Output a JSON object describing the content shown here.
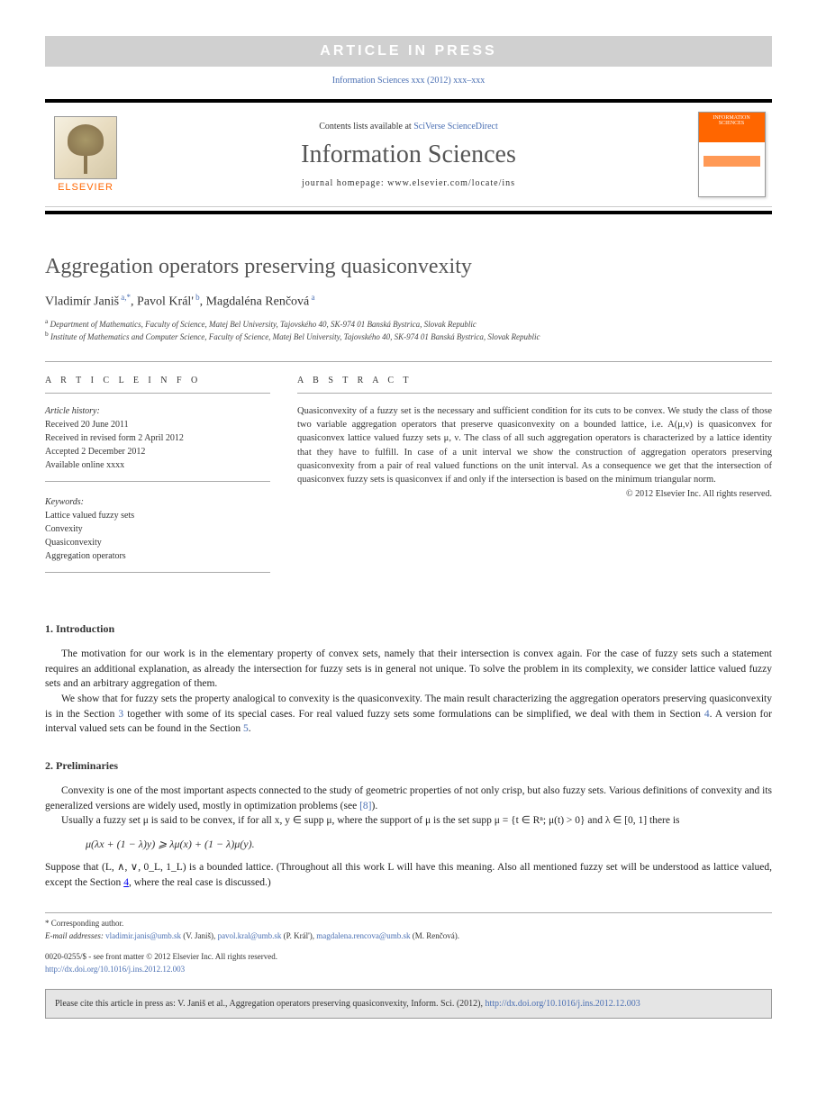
{
  "press_banner": "ARTICLE IN PRESS",
  "citation_line": "Information Sciences xxx (2012) xxx–xxx",
  "header": {
    "publisher_logo_label": "ELSEVIER",
    "contents_prefix": "Contents lists available at ",
    "contents_link": "SciVerse ScienceDirect",
    "journal_name": "Information Sciences",
    "homepage_line": "journal homepage: www.elsevier.com/locate/ins",
    "cover_title": "INFORMATION SCIENCES"
  },
  "article": {
    "title": "Aggregation operators preserving quasiconvexity",
    "authors_html": "Vladimír Janiš <sup>a,*</sup>, Pavol Král' <sup>b</sup>, Magdaléna Renčová <sup>a</sup>",
    "affiliations": {
      "a": "Department of Mathematics, Faculty of Science, Matej Bel University, Tajovského 40, SK-974 01 Banská Bystrica, Slovak Republic",
      "b": "Institute of Mathematics and Computer Science, Faculty of Science, Matej Bel University, Tajovského 40, SK-974 01 Banská Bystrica, Slovak Republic"
    }
  },
  "info": {
    "label": "A R T I C L E   I N F O",
    "history_label": "Article history:",
    "history": [
      "Received 20 June 2011",
      "Received in revised form 2 April 2012",
      "Accepted 2 December 2012",
      "Available online xxxx"
    ],
    "keywords_label": "Keywords:",
    "keywords": [
      "Lattice valued fuzzy sets",
      "Convexity",
      "Quasiconvexity",
      "Aggregation operators"
    ]
  },
  "abstract": {
    "label": "A B S T R A C T",
    "text": "Quasiconvexity of a fuzzy set is the necessary and sufficient condition for its cuts to be convex. We study the class of those two variable aggregation operators that preserve quasiconvexity on a bounded lattice, i.e. A(μ,ν) is quasiconvex for quasiconvex lattice valued fuzzy sets μ, ν. The class of all such aggregation operators is characterized by a lattice identity that they have to fulfill. In case of a unit interval we show the construction of aggregation operators preserving quasiconvexity from a pair of real valued functions on the unit interval. As a consequence we get that the intersection of quasiconvex fuzzy sets is quasiconvex if and only if the intersection is based on the minimum triangular norm.",
    "copyright": "© 2012 Elsevier Inc. All rights reserved."
  },
  "sections": {
    "intro": {
      "head": "1. Introduction",
      "p1": "The motivation for our work is in the elementary property of convex sets, namely that their intersection is convex again. For the case of fuzzy sets such a statement requires an additional explanation, as already the intersection for fuzzy sets is in general not unique. To solve the problem in its complexity, we consider lattice valued fuzzy sets and an arbitrary aggregation of them.",
      "p2_pre": "We show that for fuzzy sets the property analogical to convexity is the quasiconvexity. The main result characterizing the aggregation operators preserving quasiconvexity is in the Section ",
      "p2_link1": "3",
      "p2_mid": " together with some of its special cases. For real valued fuzzy sets some formulations can be simplified, we deal with them in Section ",
      "p2_link2": "4",
      "p2_mid2": ". A version for interval valued sets can be found in the Section ",
      "p2_link3": "5",
      "p2_end": "."
    },
    "prelim": {
      "head": "2. Preliminaries",
      "p1_pre": "Convexity is one of the most important aspects connected to the study of geometric properties of not only crisp, but also fuzzy sets. Various definitions of convexity and its generalized versions are widely used, mostly in optimization problems (see ",
      "p1_link": "[8]",
      "p1_end": ").",
      "p2": "Usually a fuzzy set μ is said to be convex, if for all x, y ∈ supp μ, where the support of μ is the set supp μ = {t ∈ Rⁿ; μ(t) > 0} and λ ∈ [0, 1] there is",
      "formula": "μ(λx + (1 − λ)y) ⩾ λμ(x) + (1 − λ)μ(y).",
      "p3_pre": "Suppose that (L, ∧, ∨, 0_L, 1_L) is a bounded lattice. (Throughout all this work L will have this meaning. Also all mentioned fuzzy set will be understood as lattice valued, except the Section ",
      "p3_link": "4",
      "p3_end": ", where the real case is discussed.)"
    }
  },
  "footnotes": {
    "corresponding": "* Corresponding author.",
    "emails_label": "E-mail addresses:",
    "emails": [
      {
        "addr": "vladimir.janis@umb.sk",
        "name": "(V. Janiš),"
      },
      {
        "addr": "pavol.kral@umb.sk",
        "name": "(P. Král'),"
      },
      {
        "addr": "magdalena.rencova@umb.sk",
        "name": "(M. Renčová)."
      }
    ]
  },
  "front_matter": {
    "line1": "0020-0255/$ - see front matter © 2012 Elsevier Inc. All rights reserved.",
    "doi": "http://dx.doi.org/10.1016/j.ins.2012.12.003"
  },
  "cite_box": {
    "text_pre": "Please cite this article in press as: V. Janiš et al., Aggregation operators preserving quasiconvexity, Inform. Sci. (2012), ",
    "link": "http://dx.doi.org/10.1016/j.ins.2012.12.003"
  },
  "colors": {
    "link": "#4a6fb3",
    "orange": "#ff6600",
    "banner_bg": "#d0d0d0",
    "cite_bg": "#e5e5e5"
  }
}
